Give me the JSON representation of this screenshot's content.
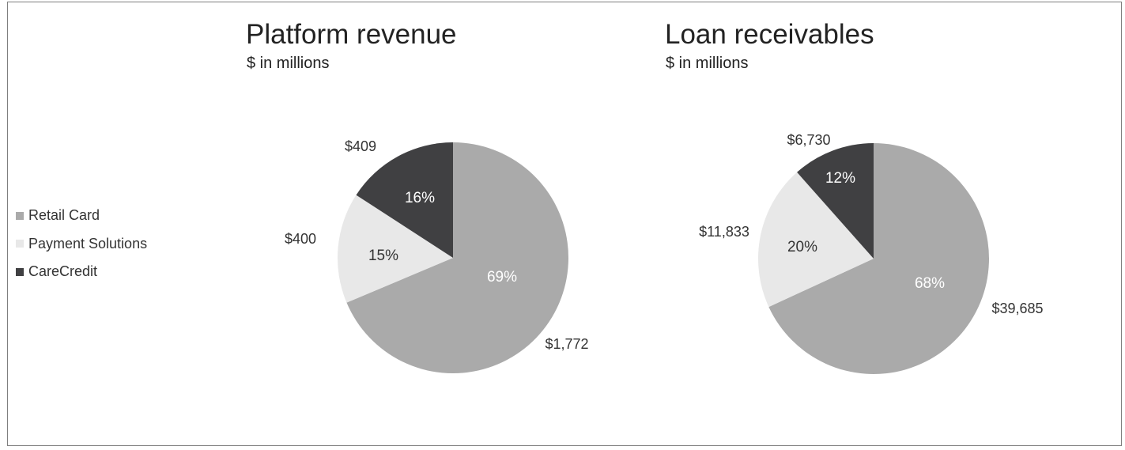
{
  "legend": [
    {
      "label": "Retail Card",
      "color": "#aaaaaa"
    },
    {
      "label": "Payment Solutions",
      "color": "#e8e8e8"
    },
    {
      "label": "CareCredit",
      "color": "#404042"
    }
  ],
  "chart_data": [
    {
      "type": "pie",
      "title": "Platform revenue",
      "subtitle": "$ in millions",
      "legend_position": "left",
      "slices": [
        {
          "name": "Retail Card",
          "value": 1772,
          "value_label": "$1,772",
          "percent_label": "69%",
          "color": "#aaaaaa",
          "pct_color": "#ffffff"
        },
        {
          "name": "Payment Solutions",
          "value": 400,
          "value_label": "$400",
          "percent_label": "15%",
          "color": "#e8e8e8",
          "pct_color": "#333333"
        },
        {
          "name": "CareCredit",
          "value": 409,
          "value_label": "$409",
          "percent_label": "16%",
          "color": "#404042",
          "pct_color": "#ffffff"
        }
      ]
    },
    {
      "type": "pie",
      "title": "Loan receivables",
      "subtitle": "$ in millions",
      "legend_position": "left",
      "slices": [
        {
          "name": "Retail Card",
          "value": 39685,
          "value_label": "$39,685",
          "percent_label": "68%",
          "color": "#aaaaaa",
          "pct_color": "#ffffff"
        },
        {
          "name": "Payment Solutions",
          "value": 11833,
          "value_label": "$11,833",
          "percent_label": "20%",
          "color": "#e8e8e8",
          "pct_color": "#333333"
        },
        {
          "name": "CareCredit",
          "value": 6730,
          "value_label": "$6,730",
          "percent_label": "12%",
          "color": "#404042",
          "pct_color": "#ffffff"
        }
      ]
    }
  ]
}
